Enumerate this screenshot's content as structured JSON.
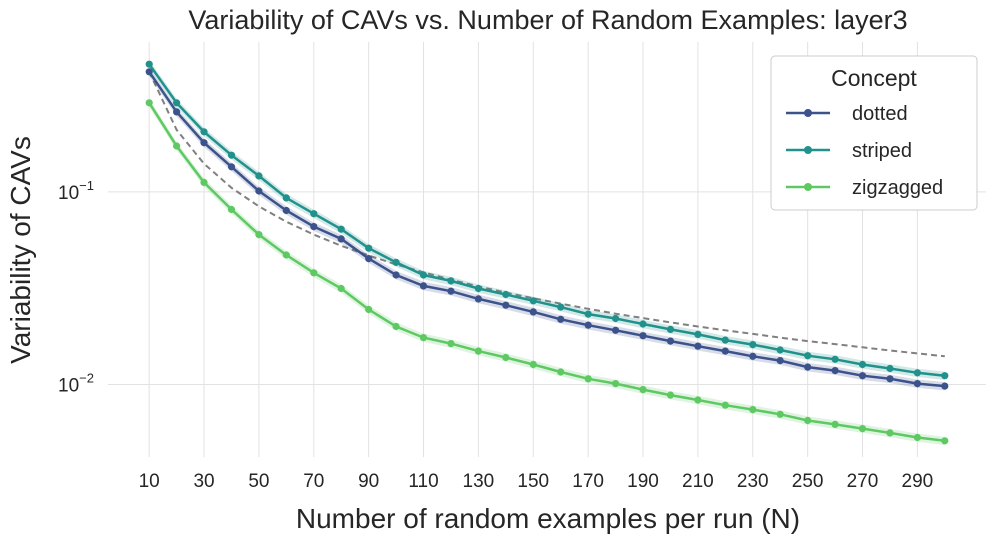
{
  "chart_data": {
    "type": "line",
    "title": "Variability of CAVs vs. Number of Random Examples: layer3",
    "xlabel": "Number of random examples per run (N)",
    "ylabel": "Variability of CAVs",
    "yscale": "log",
    "xlim": [
      -5,
      315
    ],
    "ylim": [
      0.0042,
      0.6
    ],
    "xticks": [
      10,
      30,
      50,
      70,
      90,
      110,
      130,
      150,
      170,
      190,
      210,
      230,
      250,
      270,
      290
    ],
    "yticks": [
      {
        "value": 0.1,
        "base": "10",
        "exp": "−1"
      },
      {
        "value": 0.01,
        "base": "10",
        "exp": "−2"
      }
    ],
    "grid": true,
    "legend": {
      "title": "Concept",
      "position": "top-right"
    },
    "x": [
      10,
      20,
      30,
      40,
      50,
      60,
      70,
      80,
      90,
      100,
      110,
      120,
      130,
      140,
      150,
      160,
      170,
      180,
      190,
      200,
      210,
      220,
      230,
      240,
      250,
      260,
      270,
      280,
      290,
      300
    ],
    "series": [
      {
        "name": "dotted",
        "color": "#3b528b",
        "values": [
          0.42,
          0.26,
          0.18,
          0.135,
          0.101,
          0.08,
          0.066,
          0.057,
          0.045,
          0.037,
          0.0325,
          0.0305,
          0.0278,
          0.0258,
          0.0238,
          0.0218,
          0.0203,
          0.0191,
          0.0179,
          0.0168,
          0.0158,
          0.0149,
          0.014,
          0.0133,
          0.0123,
          0.0118,
          0.0111,
          0.0107,
          0.0101,
          0.0098
        ]
      },
      {
        "name": "striped",
        "color": "#21918c",
        "values": [
          0.46,
          0.29,
          0.205,
          0.155,
          0.121,
          0.093,
          0.077,
          0.064,
          0.051,
          0.043,
          0.037,
          0.0345,
          0.0315,
          0.0293,
          0.0272,
          0.0252,
          0.0232,
          0.022,
          0.0206,
          0.0193,
          0.0182,
          0.017,
          0.0161,
          0.0151,
          0.0141,
          0.0135,
          0.0127,
          0.0121,
          0.0115,
          0.0111
        ]
      },
      {
        "name": "zigzagged",
        "color": "#5ec962",
        "values": [
          0.29,
          0.173,
          0.112,
          0.081,
          0.06,
          0.047,
          0.038,
          0.0315,
          0.0245,
          0.02,
          0.0175,
          0.0163,
          0.0149,
          0.0138,
          0.0127,
          0.0116,
          0.0107,
          0.0101,
          0.0094,
          0.0088,
          0.0083,
          0.0078,
          0.0074,
          0.007,
          0.0065,
          0.0062,
          0.0059,
          0.0056,
          0.0053,
          0.0051
        ]
      }
    ],
    "reference_curve": {
      "style": "dashed",
      "color": "#808080",
      "values": [
        0.42,
        0.21,
        0.14,
        0.105,
        0.084,
        0.07,
        0.06,
        0.0525,
        0.0467,
        0.042,
        0.0382,
        0.035,
        0.0323,
        0.03,
        0.028,
        0.0263,
        0.0247,
        0.0233,
        0.0221,
        0.021,
        0.02,
        0.0191,
        0.0183,
        0.0175,
        0.0168,
        0.0162,
        0.0156,
        0.015,
        0.0145,
        0.014
      ]
    }
  }
}
